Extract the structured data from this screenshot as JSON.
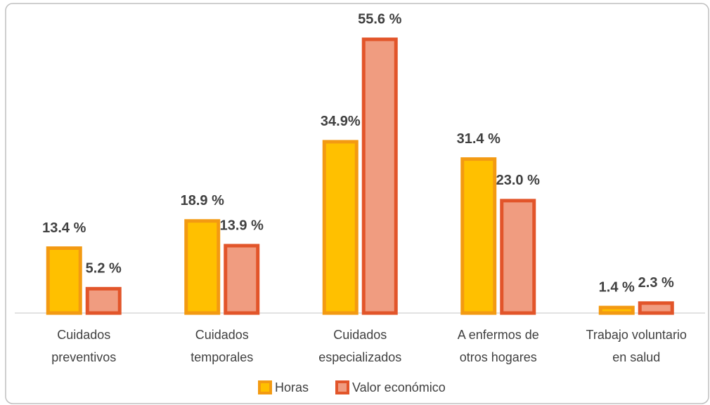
{
  "chart_data": {
    "type": "bar",
    "categories": [
      [
        "Cuidados",
        "preventivos"
      ],
      [
        "Cuidados",
        "temporales"
      ],
      [
        "Cuidados",
        "especializados"
      ],
      [
        "A enfermos de",
        "otros hogares"
      ],
      [
        "Trabajo voluntario",
        "en salud"
      ]
    ],
    "series": [
      {
        "name": "Horas",
        "color": "#FFC000",
        "edge": "#F39A12",
        "values": [
          13.4,
          18.9,
          34.9,
          31.4,
          1.4
        ],
        "value_labels": [
          "13.4 %",
          "18.9 %",
          "34.9%",
          "31.4 %",
          "1.4 %"
        ]
      },
      {
        "name": "Valor económico",
        "color": "#F09C80",
        "edge": "#E2552A",
        "values": [
          5.2,
          13.9,
          55.6,
          23.0,
          2.3
        ],
        "value_labels": [
          "5.2 %",
          "13.9 %",
          "55.6 %",
          "23.0 %",
          "2.3 %"
        ]
      }
    ]
  }
}
